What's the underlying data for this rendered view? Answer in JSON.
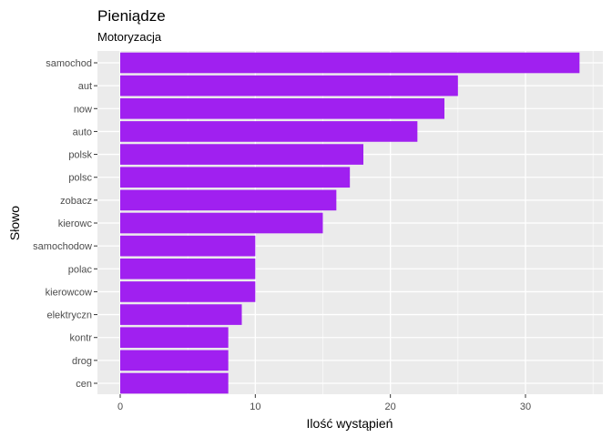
{
  "chart_data": {
    "type": "bar",
    "orientation": "horizontal",
    "title": "Pieniądze",
    "subtitle": "Motoryzacja",
    "xlabel": "Ilość wystąpień",
    "ylabel": "Słowo",
    "categories": [
      "samochod",
      "aut",
      "now",
      "auto",
      "polsk",
      "polsc",
      "zobacz",
      "kierowc",
      "samochodow",
      "polac",
      "kierowcow",
      "elektryczn",
      "kontr",
      "drog",
      "cen"
    ],
    "values": [
      34,
      25,
      24,
      22,
      18,
      17,
      16,
      15,
      10,
      10,
      10,
      9,
      8,
      8,
      8
    ],
    "xlim": [
      0,
      35
    ],
    "xticks": [
      0,
      10,
      20,
      30
    ],
    "grid": true,
    "bar_color": "#a020f0",
    "panel_color": "#ebebeb",
    "grid_color": "#ffffff"
  }
}
